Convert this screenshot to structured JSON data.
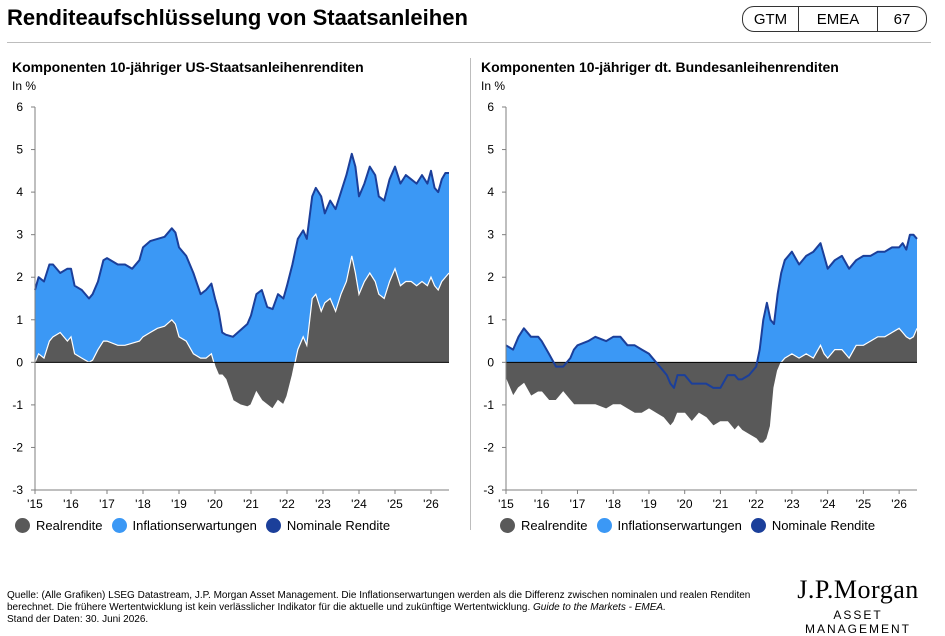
{
  "header": {
    "title": "Renditeaufschlüsselung von Staatsanleihen",
    "badge": [
      "GTM",
      "EMEA",
      "67"
    ]
  },
  "footer": {
    "source": "Quelle: (Alle Grafiken) LSEG Datastream, J.P. Morgan Asset Management. Die Inflationserwartungen werden als die Differenz zwischen nominalen und realen Renditen berechnet. Die frühere Wertentwicklung ist kein verlässlicher Indikator für die aktuelle und zukünftige Wertentwicklung.",
    "guide": "Guide to the Markets - EMEA.",
    "date": "Stand der Daten: 30. Juni 2026."
  },
  "logo": {
    "top": "J.P.Morgan",
    "bottom": "ASSET MANAGEMENT"
  },
  "colors": {
    "real": "#595959",
    "inflation": "#3b98f5",
    "nominal": "#1b3f9a"
  },
  "chart_data": [
    {
      "type": "area",
      "title": "Komponenten 10-jähriger US-Staatsanleihenrenditen",
      "ylabel": "In %",
      "ylim": [
        -3,
        6
      ],
      "yticks": [
        -3,
        -2,
        -1,
        0,
        1,
        2,
        3,
        4,
        5,
        6
      ],
      "xlim": [
        2015,
        2026.5
      ],
      "xticks": [
        "'15",
        "'16",
        "'17",
        "'18",
        "'19",
        "'20",
        "'21",
        "'22",
        "'23",
        "'24",
        "'25",
        "'26"
      ],
      "legend": [
        "Realrendite",
        "Inflationserwartungen",
        "Nominale Rendite"
      ],
      "legend_position": "bottom",
      "series": [
        {
          "name": "Nominale Rendite",
          "x": [
            2015.0,
            2015.1,
            2015.25,
            2015.4,
            2015.5,
            2015.7,
            2015.9,
            2016.0,
            2016.1,
            2016.3,
            2016.5,
            2016.6,
            2016.75,
            2016.9,
            2017.0,
            2017.3,
            2017.5,
            2017.7,
            2017.9,
            2018.0,
            2018.2,
            2018.4,
            2018.6,
            2018.8,
            2018.9,
            2019.0,
            2019.2,
            2019.4,
            2019.6,
            2019.75,
            2019.9,
            2020.0,
            2020.1,
            2020.2,
            2020.3,
            2020.5,
            2020.7,
            2020.9,
            2021.0,
            2021.15,
            2021.3,
            2021.45,
            2021.6,
            2021.75,
            2021.9,
            2022.0,
            2022.15,
            2022.3,
            2022.45,
            2022.55,
            2022.7,
            2022.8,
            2022.95,
            2023.05,
            2023.2,
            2023.35,
            2023.5,
            2023.65,
            2023.8,
            2023.9,
            2024.0,
            2024.15,
            2024.3,
            2024.45,
            2024.55,
            2024.7,
            2024.85,
            2025.0,
            2025.15,
            2025.3,
            2025.45,
            2025.6,
            2025.75,
            2025.9,
            2026.0,
            2026.1,
            2026.2,
            2026.3,
            2026.4,
            2026.5
          ],
          "values": [
            1.7,
            2.0,
            1.9,
            2.3,
            2.3,
            2.1,
            2.2,
            2.2,
            1.8,
            1.7,
            1.5,
            1.6,
            1.9,
            2.4,
            2.45,
            2.3,
            2.3,
            2.2,
            2.4,
            2.7,
            2.85,
            2.9,
            2.95,
            3.15,
            3.05,
            2.7,
            2.5,
            2.1,
            1.6,
            1.7,
            1.85,
            1.5,
            1.2,
            0.7,
            0.65,
            0.6,
            0.75,
            0.9,
            1.1,
            1.6,
            1.7,
            1.3,
            1.25,
            1.6,
            1.5,
            1.8,
            2.3,
            2.9,
            3.1,
            2.9,
            3.9,
            4.1,
            3.9,
            3.5,
            3.8,
            3.6,
            4.0,
            4.4,
            4.9,
            4.6,
            3.9,
            4.2,
            4.6,
            4.4,
            3.9,
            3.8,
            4.3,
            4.6,
            4.2,
            4.4,
            4.3,
            4.2,
            4.4,
            4.2,
            4.5,
            4.1,
            4.0,
            4.3,
            4.45,
            4.45
          ]
        },
        {
          "name": "Realrendite",
          "x": [
            2015.0,
            2015.1,
            2015.25,
            2015.4,
            2015.5,
            2015.7,
            2015.9,
            2016.0,
            2016.1,
            2016.3,
            2016.5,
            2016.6,
            2016.75,
            2016.9,
            2017.0,
            2017.3,
            2017.5,
            2017.7,
            2017.9,
            2018.0,
            2018.2,
            2018.4,
            2018.6,
            2018.8,
            2018.9,
            2019.0,
            2019.2,
            2019.4,
            2019.6,
            2019.75,
            2019.9,
            2020.0,
            2020.1,
            2020.2,
            2020.3,
            2020.5,
            2020.7,
            2020.9,
            2021.0,
            2021.15,
            2021.3,
            2021.45,
            2021.6,
            2021.75,
            2021.9,
            2022.0,
            2022.15,
            2022.3,
            2022.45,
            2022.55,
            2022.7,
            2022.8,
            2022.95,
            2023.05,
            2023.2,
            2023.35,
            2023.5,
            2023.65,
            2023.8,
            2023.9,
            2024.0,
            2024.15,
            2024.3,
            2024.45,
            2024.55,
            2024.7,
            2024.85,
            2025.0,
            2025.15,
            2025.3,
            2025.45,
            2025.6,
            2025.75,
            2025.9,
            2026.0,
            2026.1,
            2026.2,
            2026.3,
            2026.4,
            2026.5
          ],
          "values": [
            0.0,
            0.2,
            0.1,
            0.5,
            0.6,
            0.7,
            0.5,
            0.6,
            0.2,
            0.1,
            0.0,
            0.05,
            0.3,
            0.5,
            0.5,
            0.4,
            0.4,
            0.45,
            0.5,
            0.6,
            0.7,
            0.8,
            0.85,
            1.0,
            0.9,
            0.6,
            0.5,
            0.2,
            0.1,
            0.1,
            0.2,
            -0.1,
            -0.3,
            -0.3,
            -0.4,
            -0.9,
            -1.0,
            -1.05,
            -1.0,
            -0.7,
            -0.9,
            -1.0,
            -1.1,
            -0.9,
            -1.0,
            -0.8,
            -0.3,
            0.3,
            0.6,
            0.4,
            1.5,
            1.6,
            1.2,
            1.4,
            1.5,
            1.2,
            1.6,
            1.9,
            2.5,
            2.1,
            1.6,
            1.9,
            2.1,
            1.9,
            1.6,
            1.5,
            1.9,
            2.2,
            1.8,
            1.9,
            1.9,
            1.8,
            1.9,
            1.8,
            2.0,
            1.8,
            1.7,
            1.9,
            2.0,
            2.1
          ]
        }
      ]
    },
    {
      "type": "area",
      "title": "Komponenten 10-jähriger dt. Bundesanleihenrenditen",
      "ylabel": "In %",
      "ylim": [
        -3,
        6
      ],
      "yticks": [
        -3,
        -2,
        -1,
        0,
        1,
        2,
        3,
        4,
        5,
        6
      ],
      "xlim": [
        2015,
        2026.5
      ],
      "xticks": [
        "'15",
        "'16",
        "'17",
        "'18",
        "'19",
        "'20",
        "'21",
        "'22",
        "'23",
        "'24",
        "'25",
        "'26"
      ],
      "legend": [
        "Realrendite",
        "Inflationserwartungen",
        "Nominale Rendite"
      ],
      "legend_position": "bottom",
      "series": [
        {
          "name": "Nominale Rendite",
          "x": [
            2015.0,
            2015.2,
            2015.35,
            2015.5,
            2015.7,
            2015.9,
            2016.0,
            2016.2,
            2016.4,
            2016.5,
            2016.6,
            2016.8,
            2016.9,
            2017.0,
            2017.3,
            2017.5,
            2017.8,
            2018.0,
            2018.2,
            2018.4,
            2018.6,
            2018.8,
            2019.0,
            2019.2,
            2019.4,
            2019.5,
            2019.6,
            2019.7,
            2019.8,
            2020.0,
            2020.2,
            2020.4,
            2020.6,
            2020.8,
            2021.0,
            2021.2,
            2021.4,
            2021.5,
            2021.6,
            2021.8,
            2022.0,
            2022.1,
            2022.2,
            2022.3,
            2022.4,
            2022.5,
            2022.6,
            2022.7,
            2022.8,
            2023.0,
            2023.2,
            2023.4,
            2023.6,
            2023.8,
            2023.9,
            2024.0,
            2024.2,
            2024.4,
            2024.6,
            2024.8,
            2025.0,
            2025.2,
            2025.4,
            2025.6,
            2025.8,
            2026.0,
            2026.1,
            2026.2,
            2026.3,
            2026.4,
            2026.5
          ],
          "values": [
            0.4,
            0.3,
            0.6,
            0.8,
            0.6,
            0.6,
            0.5,
            0.2,
            -0.1,
            -0.1,
            -0.1,
            0.1,
            0.3,
            0.4,
            0.5,
            0.6,
            0.5,
            0.6,
            0.6,
            0.4,
            0.4,
            0.3,
            0.2,
            0.0,
            -0.2,
            -0.3,
            -0.5,
            -0.6,
            -0.3,
            -0.3,
            -0.5,
            -0.5,
            -0.5,
            -0.6,
            -0.6,
            -0.3,
            -0.3,
            -0.4,
            -0.4,
            -0.3,
            -0.1,
            0.3,
            1.0,
            1.4,
            1.0,
            0.9,
            1.6,
            2.1,
            2.4,
            2.6,
            2.3,
            2.5,
            2.6,
            2.8,
            2.5,
            2.2,
            2.4,
            2.5,
            2.2,
            2.4,
            2.5,
            2.5,
            2.6,
            2.6,
            2.7,
            2.7,
            2.8,
            2.65,
            3.0,
            3.0,
            2.9
          ]
        },
        {
          "name": "Realrendite",
          "x": [
            2015.0,
            2015.2,
            2015.35,
            2015.5,
            2015.7,
            2015.9,
            2016.0,
            2016.2,
            2016.4,
            2016.5,
            2016.6,
            2016.8,
            2016.9,
            2017.0,
            2017.3,
            2017.5,
            2017.8,
            2018.0,
            2018.2,
            2018.4,
            2018.6,
            2018.8,
            2019.0,
            2019.2,
            2019.4,
            2019.5,
            2019.6,
            2019.7,
            2019.8,
            2020.0,
            2020.2,
            2020.4,
            2020.6,
            2020.8,
            2021.0,
            2021.2,
            2021.4,
            2021.5,
            2021.6,
            2021.8,
            2022.0,
            2022.1,
            2022.2,
            2022.3,
            2022.4,
            2022.5,
            2022.6,
            2022.7,
            2022.8,
            2023.0,
            2023.2,
            2023.4,
            2023.6,
            2023.8,
            2023.9,
            2024.0,
            2024.2,
            2024.4,
            2024.6,
            2024.8,
            2025.0,
            2025.2,
            2025.4,
            2025.6,
            2025.8,
            2026.0,
            2026.1,
            2026.2,
            2026.3,
            2026.4,
            2026.5
          ],
          "values": [
            -0.4,
            -0.8,
            -0.6,
            -0.5,
            -0.8,
            -0.7,
            -0.7,
            -0.9,
            -0.9,
            -0.8,
            -0.7,
            -0.9,
            -1.0,
            -1.0,
            -1.0,
            -1.0,
            -1.1,
            -1.0,
            -1.0,
            -1.1,
            -1.2,
            -1.2,
            -1.1,
            -1.2,
            -1.3,
            -1.4,
            -1.5,
            -1.4,
            -1.2,
            -1.2,
            -1.4,
            -1.2,
            -1.3,
            -1.5,
            -1.4,
            -1.4,
            -1.6,
            -1.5,
            -1.6,
            -1.7,
            -1.8,
            -1.9,
            -1.9,
            -1.8,
            -1.5,
            -0.6,
            -0.2,
            0.0,
            0.1,
            0.2,
            0.1,
            0.2,
            0.1,
            0.4,
            0.2,
            0.1,
            0.3,
            0.3,
            0.1,
            0.4,
            0.4,
            0.5,
            0.6,
            0.6,
            0.7,
            0.8,
            0.7,
            0.6,
            0.55,
            0.6,
            0.8
          ]
        }
      ]
    }
  ]
}
